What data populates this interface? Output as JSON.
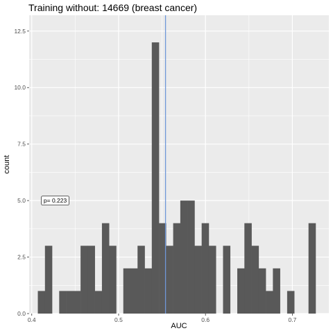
{
  "chart_data": {
    "type": "bar",
    "title": "Training without: 14669 (breast cancer)",
    "xlabel": "AUC",
    "ylabel": "count",
    "xlim": [
      0.397,
      0.742
    ],
    "ylim": [
      0,
      13.2
    ],
    "x_ticks": [
      {
        "value": 0.4,
        "label": "0.4"
      },
      {
        "value": 0.5,
        "label": "0.5"
      },
      {
        "value": 0.6,
        "label": "0.6"
      },
      {
        "value": 0.7,
        "label": "0.7"
      }
    ],
    "y_ticks": [
      {
        "value": 0.0,
        "label": "0.0"
      },
      {
        "value": 2.5,
        "label": "2.5"
      },
      {
        "value": 5.0,
        "label": "5.0"
      },
      {
        "value": 7.5,
        "label": "7.5"
      },
      {
        "value": 10.0,
        "label": "10.0"
      },
      {
        "value": 12.5,
        "label": "12.5"
      }
    ],
    "bin_width": 0.0082,
    "bins": [
      {
        "x0": 0.407,
        "count": 1
      },
      {
        "x0": 0.4152,
        "count": 3
      },
      {
        "x0": 0.4234,
        "count": 0
      },
      {
        "x0": 0.4316,
        "count": 1
      },
      {
        "x0": 0.4398,
        "count": 1
      },
      {
        "x0": 0.448,
        "count": 1
      },
      {
        "x0": 0.4562,
        "count": 3
      },
      {
        "x0": 0.4644,
        "count": 3
      },
      {
        "x0": 0.4726,
        "count": 1
      },
      {
        "x0": 0.4808,
        "count": 4
      },
      {
        "x0": 0.489,
        "count": 3
      },
      {
        "x0": 0.4972,
        "count": 0
      },
      {
        "x0": 0.5054,
        "count": 2
      },
      {
        "x0": 0.5136,
        "count": 2
      },
      {
        "x0": 0.5218,
        "count": 3
      },
      {
        "x0": 0.53,
        "count": 2
      },
      {
        "x0": 0.5382,
        "count": 12
      },
      {
        "x0": 0.5464,
        "count": 4
      },
      {
        "x0": 0.5546,
        "count": 3
      },
      {
        "x0": 0.5628,
        "count": 4
      },
      {
        "x0": 0.571,
        "count": 5
      },
      {
        "x0": 0.5792,
        "count": 5
      },
      {
        "x0": 0.5874,
        "count": 3
      },
      {
        "x0": 0.5956,
        "count": 4
      },
      {
        "x0": 0.6038,
        "count": 3
      },
      {
        "x0": 0.612,
        "count": 0
      },
      {
        "x0": 0.6202,
        "count": 3
      },
      {
        "x0": 0.6284,
        "count": 0
      },
      {
        "x0": 0.6366,
        "count": 2
      },
      {
        "x0": 0.6448,
        "count": 4
      },
      {
        "x0": 0.653,
        "count": 3
      },
      {
        "x0": 0.6612,
        "count": 2
      },
      {
        "x0": 0.6694,
        "count": 1
      },
      {
        "x0": 0.6776,
        "count": 2
      },
      {
        "x0": 0.6858,
        "count": 0
      },
      {
        "x0": 0.694,
        "count": 1
      },
      {
        "x0": 0.7022,
        "count": 0
      },
      {
        "x0": 0.7104,
        "count": 0
      },
      {
        "x0": 0.7186,
        "count": 4
      }
    ],
    "vline": {
      "x": 0.554,
      "color": "#6f97d8"
    },
    "annotation": {
      "text": "p= 0.223",
      "x": 0.427,
      "y": 5.0
    },
    "grid": true,
    "colors": {
      "bar": "#595959",
      "panel": "#ebebeb",
      "grid": "#ffffff"
    }
  }
}
